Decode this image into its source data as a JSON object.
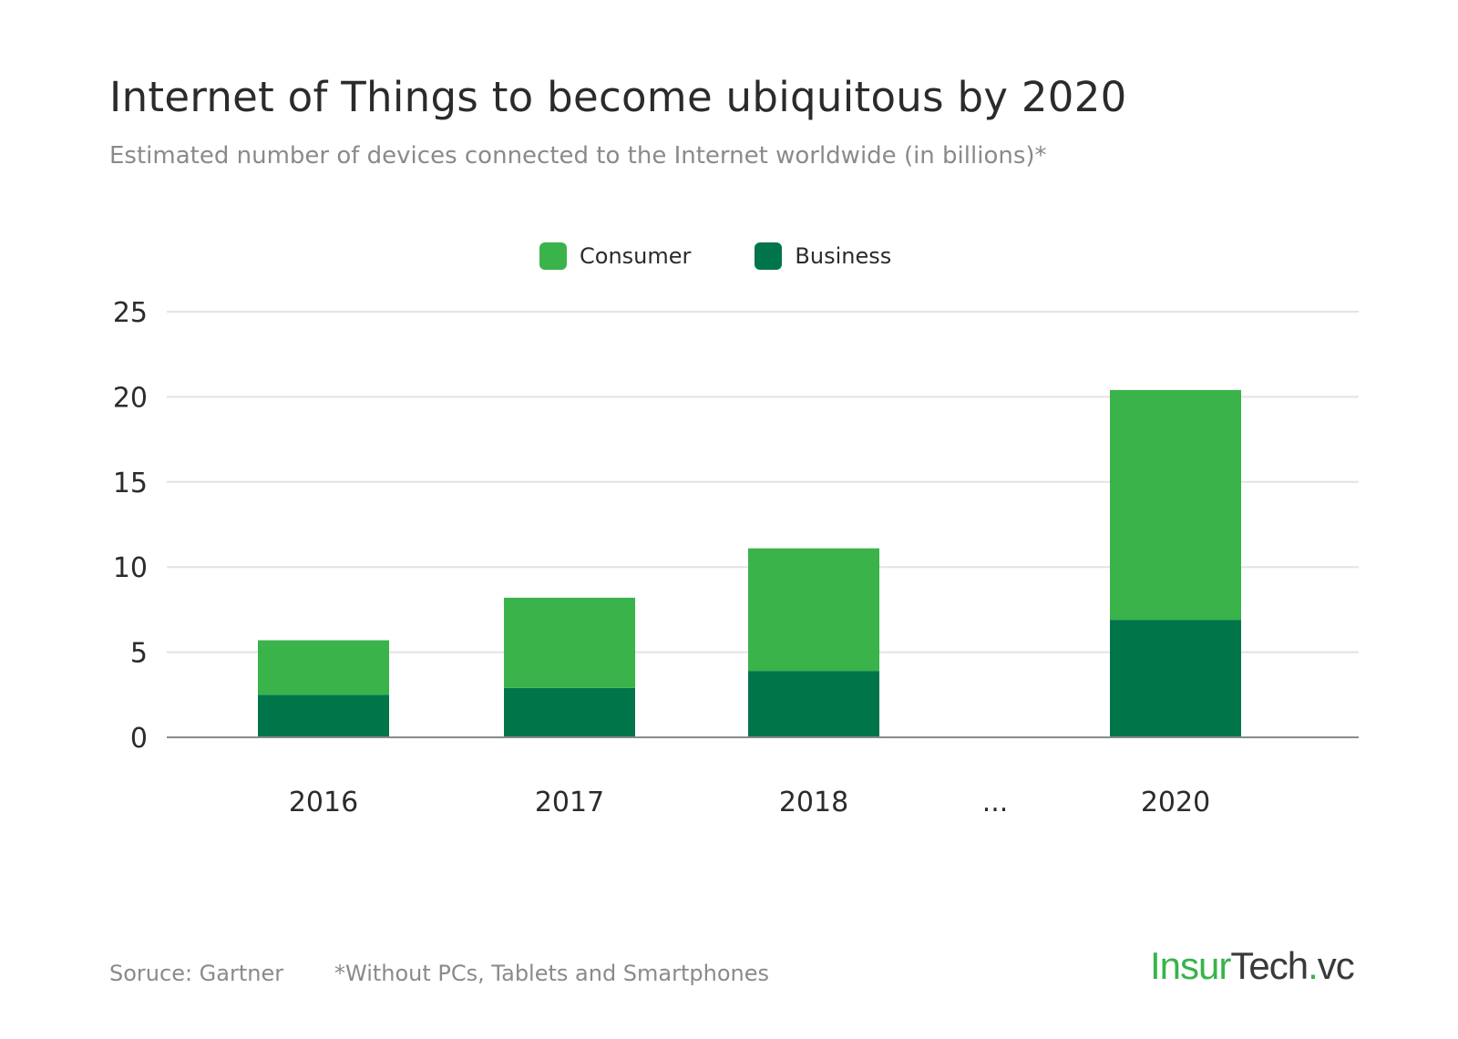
{
  "colors": {
    "consumer": "#39b34a",
    "business": "#00754a",
    "grid": "#e3e3e3",
    "axis": "#8a8a8a",
    "text": "#2b2b2b"
  },
  "chart_data": {
    "type": "bar",
    "stacked": true,
    "title": "Internet of Things to become ubiquitous by 2020",
    "subtitle": "Estimated number of devices connected to the Internet worldwide (in billions)*",
    "categories": [
      "2016",
      "2017",
      "2018",
      "...",
      "2020"
    ],
    "series": [
      {
        "name": "Business",
        "values": [
          2.5,
          2.9,
          3.9,
          null,
          6.9
        ]
      },
      {
        "name": "Consumer",
        "values": [
          3.2,
          5.3,
          7.2,
          null,
          13.5
        ]
      }
    ],
    "legend": [
      "Consumer",
      "Business"
    ],
    "legend_position": "top",
    "ylim": [
      0,
      25
    ],
    "yticks": [
      "0",
      "5",
      "10",
      "15",
      "20",
      "25"
    ],
    "grid": true
  },
  "footer": {
    "source": "Soruce: Gartner",
    "note": "*Without PCs, Tablets and Smartphones"
  },
  "logo": {
    "part1": "Insur",
    "part2": "Tech",
    "dot": ".",
    "part3": "vc"
  }
}
